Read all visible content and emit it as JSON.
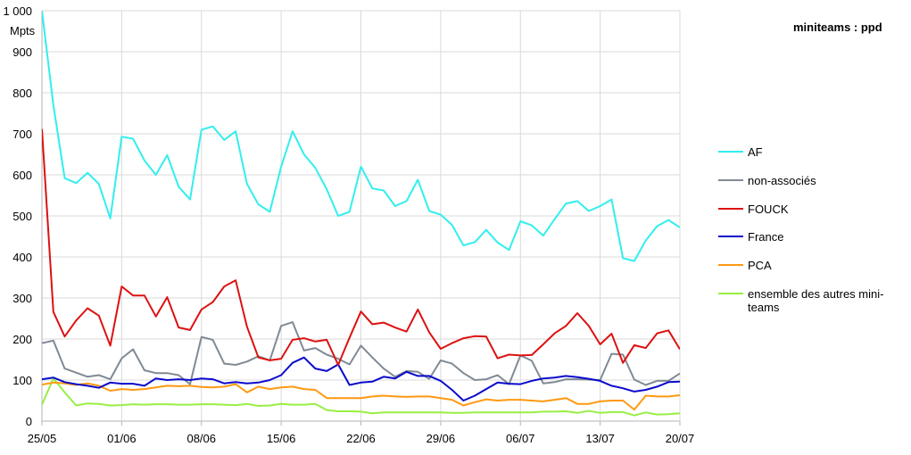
{
  "chart_data": {
    "type": "line",
    "title": "miniteams : ppd",
    "ylabel": "Mpts",
    "ylim": [
      0,
      1000
    ],
    "yticks": [
      "0",
      "100",
      "200",
      "300",
      "400",
      "500",
      "600",
      "700",
      "800",
      "900",
      "1 000"
    ],
    "xticks": [
      "25/05",
      "01/06",
      "08/06",
      "15/06",
      "22/06",
      "29/06",
      "06/07",
      "13/07",
      "20/07"
    ],
    "x_start": "25/05",
    "x_end": "20/07",
    "grid": true,
    "legend_position": "right",
    "series": [
      {
        "name": "AF",
        "color": "#33EEEE",
        "values": [
          1000,
          770,
          592,
          580,
          605,
          578,
          494,
          693,
          688,
          635,
          600,
          648,
          571,
          540,
          710,
          718,
          685,
          706,
          578,
          528,
          510,
          620,
          706,
          650,
          617,
          565,
          500,
          510,
          620,
          567,
          562,
          524,
          536,
          588,
          512,
          503,
          478,
          428,
          436,
          466,
          435,
          417,
          487,
          477,
          452,
          492,
          530,
          536,
          512,
          524,
          540,
          397,
          390,
          440,
          475,
          490,
          472
        ]
      },
      {
        "name": "non-associés",
        "color": "#808A94",
        "values": [
          190,
          196,
          128,
          118,
          108,
          112,
          102,
          153,
          175,
          124,
          117,
          117,
          112,
          90,
          205,
          198,
          140,
          137,
          145,
          158,
          148,
          232,
          241,
          172,
          178,
          162,
          152,
          138,
          184,
          155,
          128,
          108,
          122,
          120,
          103,
          148,
          140,
          117,
          100,
          102,
          112,
          90,
          160,
          147,
          92,
          95,
          102,
          102,
          101,
          100,
          164,
          162,
          101,
          88,
          98,
          98,
          116
        ]
      },
      {
        "name": "FOUCK",
        "color": "#DD1111",
        "values": [
          712,
          266,
          206,
          245,
          275,
          257,
          184,
          328,
          306,
          306,
          255,
          302,
          228,
          222,
          272,
          290,
          328,
          343,
          230,
          155,
          148,
          152,
          198,
          202,
          194,
          198,
          137,
          203,
          267,
          236,
          240,
          228,
          218,
          272,
          216,
          176,
          190,
          202,
          207,
          206,
          153,
          162,
          160,
          161,
          187,
          214,
          232,
          263,
          232,
          187,
          213,
          142,
          185,
          178,
          214,
          221,
          175
        ]
      },
      {
        "name": "France",
        "color": "#0A0ACC",
        "values": [
          102,
          106,
          95,
          90,
          86,
          81,
          94,
          91,
          91,
          86,
          104,
          100,
          102,
          100,
          104,
          102,
          92,
          95,
          92,
          94,
          100,
          112,
          142,
          155,
          128,
          122,
          138,
          88,
          94,
          96,
          108,
          104,
          120,
          110,
          110,
          98,
          76,
          50,
          62,
          78,
          94,
          91,
          90,
          98,
          104,
          106,
          110,
          107,
          103,
          98,
          86,
          80,
          72,
          76,
          84,
          95,
          96
        ]
      },
      {
        "name": "PCA",
        "color": "#FF9911",
        "values": [
          89,
          94,
          92,
          88,
          92,
          86,
          74,
          78,
          76,
          78,
          82,
          86,
          85,
          86,
          83,
          82,
          84,
          90,
          70,
          84,
          78,
          82,
          84,
          78,
          76,
          56,
          56,
          56,
          56,
          60,
          62,
          60,
          59,
          60,
          60,
          56,
          52,
          38,
          46,
          53,
          50,
          52,
          52,
          50,
          48,
          52,
          56,
          42,
          42,
          48,
          50,
          50,
          28,
          62,
          60,
          60,
          63
        ]
      },
      {
        "name": "ensemble des autres mini-teams",
        "color": "#99EE44",
        "values": [
          40,
          104,
          70,
          38,
          43,
          42,
          38,
          39,
          41,
          40,
          41,
          41,
          40,
          40,
          41,
          41,
          40,
          39,
          42,
          37,
          38,
          42,
          40,
          40,
          42,
          27,
          24,
          24,
          23,
          19,
          21,
          21,
          21,
          21,
          21,
          21,
          20,
          20,
          21,
          21,
          21,
          21,
          21,
          21,
          23,
          23,
          24,
          20,
          25,
          20,
          22,
          22,
          14,
          21,
          16,
          17,
          19
        ]
      }
    ]
  }
}
